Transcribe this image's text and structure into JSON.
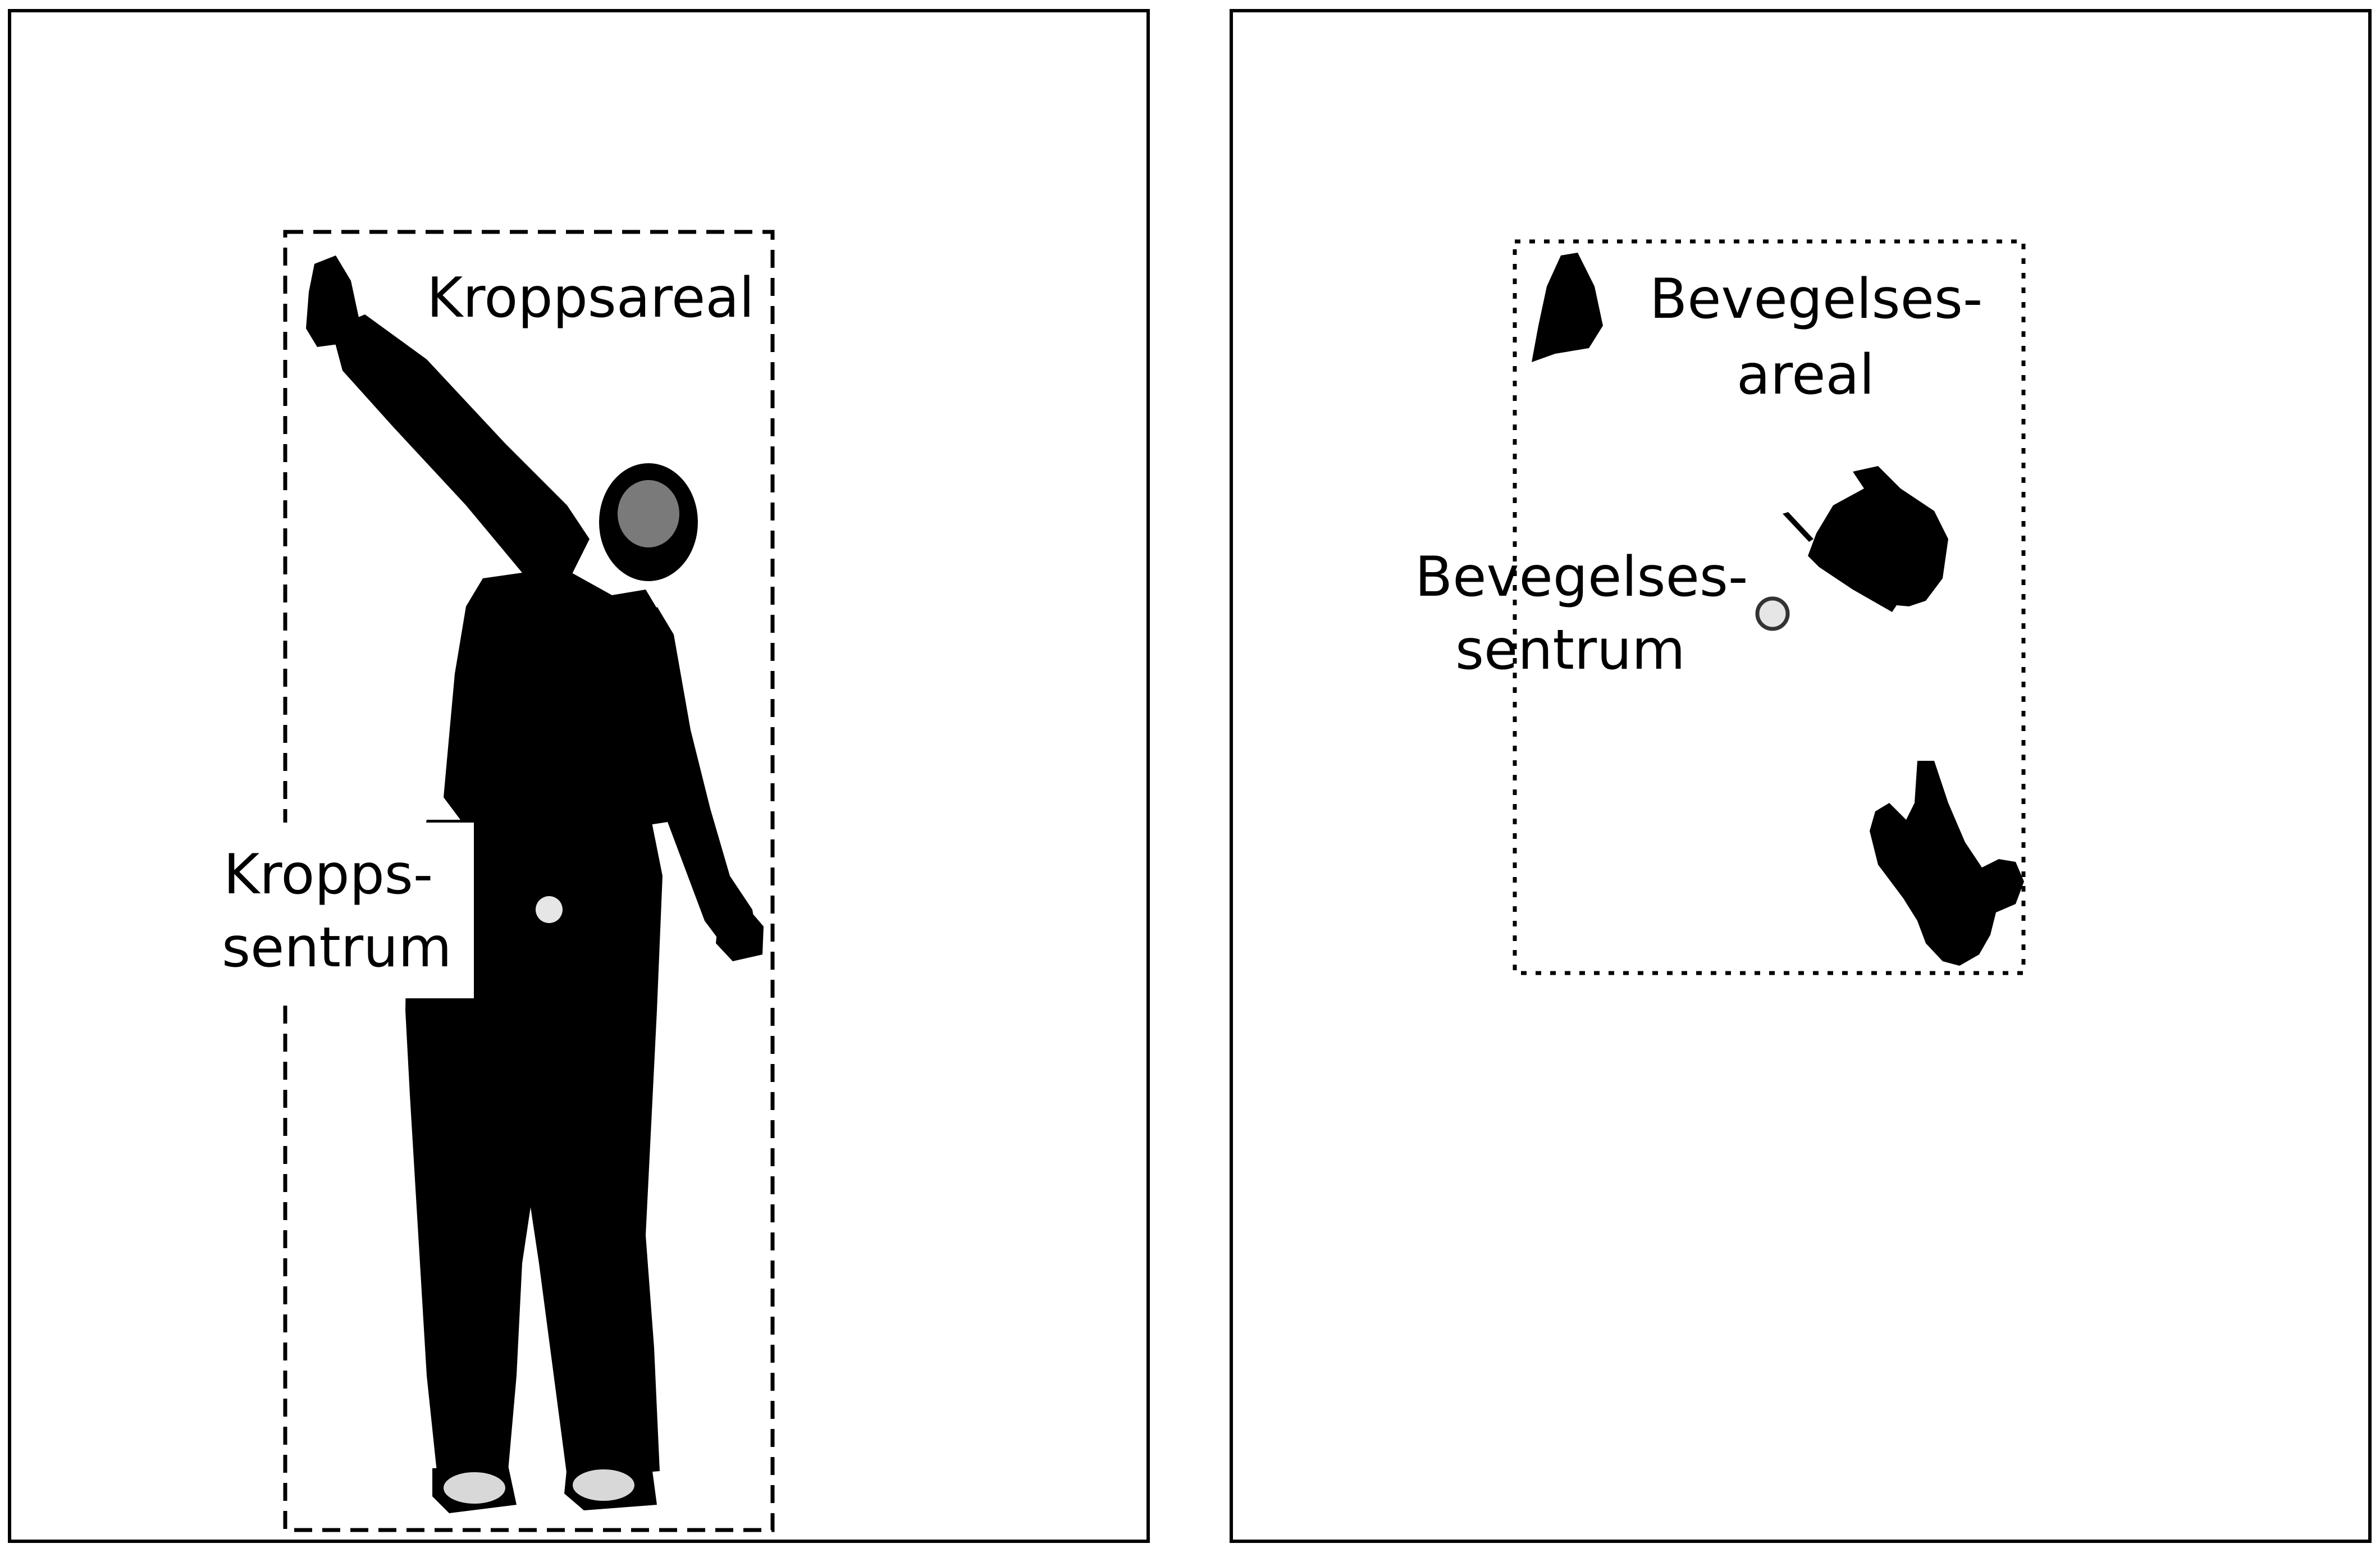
{
  "left_panel": {
    "body_area_label": "Kroppsareal",
    "body_center_label_line1": "Kropps-",
    "body_center_label_line2": "sentrum"
  },
  "right_panel": {
    "motion_area_label_line1": "Bevegelses-",
    "motion_area_label_line2": "areal",
    "motion_center_label_line1": "Bevegelses-",
    "motion_center_label_line2": "sentrum"
  },
  "colors": {
    "silhouette": "#000000",
    "center_marker": "#e6e6e6",
    "frame": "#000000"
  }
}
